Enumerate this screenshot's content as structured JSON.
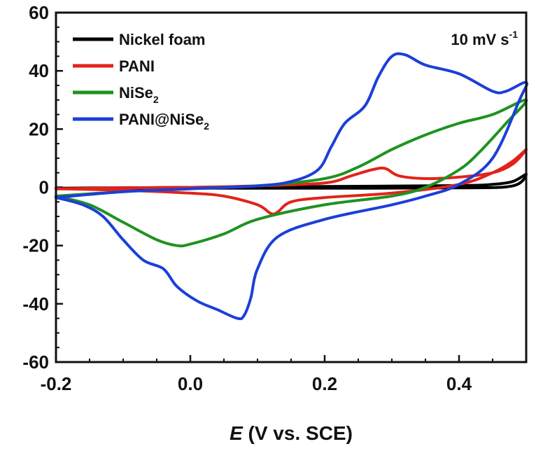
{
  "chart_data": {
    "type": "line",
    "xlabel": {
      "italic": "E",
      "rest": " (V vs. SCE)"
    },
    "ylabel": "",
    "xlim": [
      -0.2,
      0.5
    ],
    "ylim": [
      -60,
      60
    ],
    "xticks": [
      -0.2,
      0.0,
      0.2,
      0.4
    ],
    "xtick_labels": [
      "-0.2",
      "0.0",
      "0.2",
      "0.4"
    ],
    "yticks": [
      -60,
      -40,
      -20,
      0,
      20,
      40,
      60
    ],
    "ytick_labels": [
      "-60",
      "-40",
      "-20",
      "0",
      "20",
      "40",
      "60"
    ],
    "grid": false,
    "legend_position": "top-left",
    "annotation": {
      "text": "10 mV s",
      "sup": "-1"
    },
    "series": [
      {
        "name": "Nickel foam",
        "color": "#000000",
        "legend_base": "Nickel foam",
        "legend_sub": "",
        "legend_tail": "",
        "points": [
          [
            -0.2,
            -0.3
          ],
          [
            0.0,
            0.0
          ],
          [
            0.2,
            0.3
          ],
          [
            0.4,
            0.6
          ],
          [
            0.45,
            1.0
          ],
          [
            0.48,
            2.0
          ],
          [
            0.5,
            4.5
          ],
          [
            0.48,
            0.5
          ],
          [
            0.4,
            -0.2
          ],
          [
            0.2,
            -0.3
          ],
          [
            0.0,
            -0.3
          ],
          [
            -0.2,
            -0.3
          ]
        ]
      },
      {
        "name": "PANI",
        "color": "#e2231a",
        "legend_base": "PANI",
        "legend_sub": "",
        "legend_tail": "",
        "points": [
          [
            -0.2,
            -0.5
          ],
          [
            -0.1,
            -0.2
          ],
          [
            0.0,
            0.0
          ],
          [
            0.1,
            0.5
          ],
          [
            0.2,
            1.5
          ],
          [
            0.24,
            4.0
          ],
          [
            0.27,
            6.0
          ],
          [
            0.29,
            6.5
          ],
          [
            0.31,
            4.0
          ],
          [
            0.35,
            3.0
          ],
          [
            0.4,
            3.5
          ],
          [
            0.45,
            5.0
          ],
          [
            0.48,
            8.0
          ],
          [
            0.5,
            13.0
          ],
          [
            0.48,
            9.0
          ],
          [
            0.45,
            5.0
          ],
          [
            0.4,
            1.0
          ],
          [
            0.3,
            -2.0
          ],
          [
            0.2,
            -3.5
          ],
          [
            0.15,
            -5.0
          ],
          [
            0.13,
            -8.5
          ],
          [
            0.12,
            -9.0
          ],
          [
            0.1,
            -6.0
          ],
          [
            0.05,
            -3.0
          ],
          [
            0.0,
            -2.0
          ],
          [
            -0.1,
            -1.0
          ],
          [
            -0.2,
            -0.5
          ]
        ]
      },
      {
        "name": "NiSe2",
        "color": "#1e9320",
        "legend_base": "NiSe",
        "legend_sub": "2",
        "legend_tail": "",
        "points": [
          [
            -0.2,
            -3.0
          ],
          [
            -0.1,
            -1.5
          ],
          [
            0.0,
            -0.5
          ],
          [
            0.1,
            0.5
          ],
          [
            0.2,
            3.0
          ],
          [
            0.25,
            7.0
          ],
          [
            0.3,
            13.0
          ],
          [
            0.35,
            18.0
          ],
          [
            0.4,
            22.0
          ],
          [
            0.45,
            25.0
          ],
          [
            0.5,
            30.0
          ],
          [
            0.47,
            22.0
          ],
          [
            0.43,
            12.0
          ],
          [
            0.4,
            6.0
          ],
          [
            0.35,
            0.0
          ],
          [
            0.3,
            -3.0
          ],
          [
            0.2,
            -6.0
          ],
          [
            0.1,
            -11.0
          ],
          [
            0.05,
            -16.0
          ],
          [
            0.0,
            -19.5
          ],
          [
            -0.02,
            -20.0
          ],
          [
            -0.05,
            -18.0
          ],
          [
            -0.1,
            -12.0
          ],
          [
            -0.15,
            -6.0
          ],
          [
            -0.2,
            -3.0
          ]
        ]
      },
      {
        "name": "PANI@NiSe2",
        "color": "#1c3fd8",
        "legend_base": "PANI@NiSe",
        "legend_sub": "2",
        "legend_tail": "",
        "points": [
          [
            -0.2,
            -3.5
          ],
          [
            -0.1,
            -1.5
          ],
          [
            0.0,
            -0.5
          ],
          [
            0.1,
            0.5
          ],
          [
            0.15,
            2.0
          ],
          [
            0.19,
            6.0
          ],
          [
            0.21,
            14.0
          ],
          [
            0.23,
            22.0
          ],
          [
            0.26,
            28.0
          ],
          [
            0.28,
            38.0
          ],
          [
            0.3,
            45.0
          ],
          [
            0.32,
            45.5
          ],
          [
            0.35,
            42.0
          ],
          [
            0.4,
            39.0
          ],
          [
            0.45,
            33.0
          ],
          [
            0.47,
            33.0
          ],
          [
            0.5,
            36.0
          ],
          [
            0.49,
            30.0
          ],
          [
            0.45,
            10.0
          ],
          [
            0.4,
            1.0
          ],
          [
            0.35,
            -3.0
          ],
          [
            0.3,
            -6.0
          ],
          [
            0.2,
            -11.0
          ],
          [
            0.13,
            -17.0
          ],
          [
            0.1,
            -28.0
          ],
          [
            0.09,
            -38.0
          ],
          [
            0.08,
            -44.0
          ],
          [
            0.07,
            -45.0
          ],
          [
            0.04,
            -42.0
          ],
          [
            0.01,
            -39.0
          ],
          [
            -0.02,
            -34.0
          ],
          [
            -0.04,
            -28.0
          ],
          [
            -0.07,
            -25.0
          ],
          [
            -0.1,
            -18.0
          ],
          [
            -0.13,
            -10.0
          ],
          [
            -0.16,
            -6.0
          ],
          [
            -0.2,
            -3.5
          ]
        ]
      }
    ]
  }
}
